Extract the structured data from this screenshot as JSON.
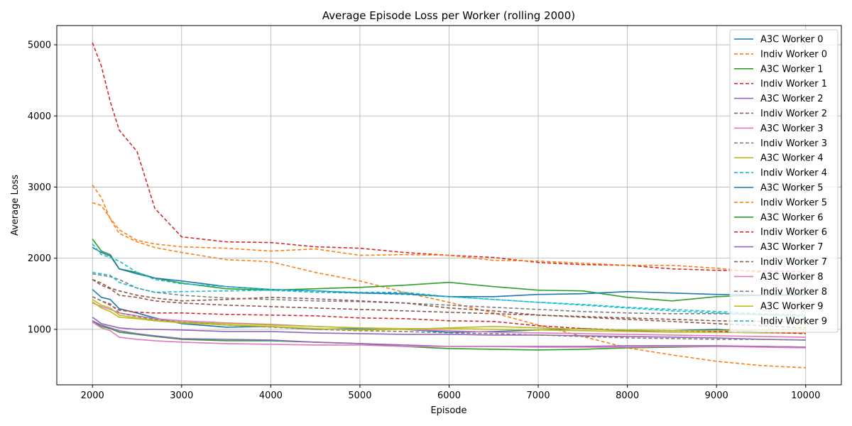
{
  "chart_data": {
    "type": "line",
    "title": "Average Episode Loss per Worker (rolling 2000)",
    "xlabel": "Episode",
    "ylabel": "Average Loss",
    "xlim": [
      1600,
      10400
    ],
    "ylim": [
      220,
      5270
    ],
    "xticks": [
      2000,
      3000,
      4000,
      5000,
      6000,
      7000,
      8000,
      9000,
      10000
    ],
    "yticks": [
      1000,
      2000,
      3000,
      4000,
      5000
    ],
    "grid": true,
    "legend_position": "upper right",
    "x": [
      2000,
      2100,
      2200,
      2300,
      2500,
      2700,
      3000,
      3500,
      4000,
      4500,
      5000,
      5500,
      6000,
      6500,
      7000,
      7500,
      8000,
      8500,
      9000,
      9500,
      10000
    ],
    "series": [
      {
        "name": "A3C Worker 0",
        "color": "#1f77b4",
        "dash": false,
        "values": [
          1560,
          1450,
          1420,
          1290,
          1230,
          1160,
          1080,
          1030,
          1040,
          1000,
          1010,
          1000,
          960,
          970,
          990,
          1010,
          980,
          980,
          1000,
          960,
          950
        ]
      },
      {
        "name": "Indiv Worker 0",
        "color": "#ff7f0e",
        "dash": true,
        "values": [
          3030,
          2850,
          2550,
          2350,
          2230,
          2150,
          2080,
          1980,
          1950,
          1800,
          1680,
          1520,
          1380,
          1230,
          1060,
          900,
          740,
          640,
          550,
          490,
          460
        ]
      },
      {
        "name": "A3C Worker 1",
        "color": "#2ca02c",
        "dash": false,
        "values": [
          2270,
          2100,
          2050,
          1850,
          1800,
          1720,
          1650,
          1570,
          1550,
          1570,
          1590,
          1620,
          1660,
          1600,
          1550,
          1540,
          1450,
          1400,
          1460,
          1480,
          1490
        ]
      },
      {
        "name": "Indiv Worker 1",
        "color": "#d62728",
        "dash": true,
        "values": [
          5030,
          4700,
          4200,
          3800,
          3500,
          2700,
          2300,
          2230,
          2220,
          2160,
          2140,
          2080,
          2040,
          2010,
          1940,
          1910,
          1900,
          1850,
          1830,
          1820,
          1810
        ]
      },
      {
        "name": "A3C Worker 2",
        "color": "#9467bd",
        "dash": false,
        "values": [
          1170,
          1080,
          1050,
          1020,
          1000,
          1000,
          990,
          970,
          970,
          950,
          940,
          930,
          930,
          920,
          920,
          910,
          900,
          890,
          880,
          860,
          850
        ]
      },
      {
        "name": "Indiv Worker 2",
        "color": "#8c564b",
        "dash": true,
        "values": [
          1700,
          1620,
          1570,
          1480,
          1450,
          1400,
          1370,
          1340,
          1320,
          1300,
          1280,
          1260,
          1240,
          1220,
          1200,
          1180,
          1160,
          1140,
          1120,
          1110,
          1100
        ]
      },
      {
        "name": "A3C Worker 3",
        "color": "#e377c2",
        "dash": false,
        "values": [
          1370,
          1320,
          1280,
          1230,
          1190,
          1150,
          1120,
          1090,
          1070,
          1040,
          1020,
          1000,
          980,
          960,
          950,
          940,
          930,
          920,
          910,
          900,
          890
        ]
      },
      {
        "name": "Indiv Worker 3",
        "color": "#7f7f7f",
        "dash": true,
        "values": [
          1780,
          1760,
          1740,
          1700,
          1580,
          1520,
          1480,
          1440,
          1420,
          1400,
          1390,
          1370,
          1340,
          1310,
          1280,
          1250,
          1230,
          1220,
          1220,
          1210,
          1200
        ]
      },
      {
        "name": "A3C Worker 4",
        "color": "#bcbd22",
        "dash": false,
        "values": [
          1420,
          1340,
          1300,
          1200,
          1160,
          1130,
          1100,
          1080,
          1060,
          1040,
          1020,
          1010,
          1010,
          1000,
          990,
          980,
          970,
          960,
          960,
          950,
          950
        ]
      },
      {
        "name": "Indiv Worker 4",
        "color": "#17becf",
        "dash": true,
        "values": [
          1800,
          1780,
          1760,
          1660,
          1580,
          1520,
          1530,
          1540,
          1550,
          1520,
          1510,
          1490,
          1460,
          1420,
          1380,
          1350,
          1310,
          1280,
          1250,
          1220,
          1200
        ]
      },
      {
        "name": "A3C Worker 5",
        "color": "#1f77b4",
        "dash": false,
        "values": [
          2150,
          2080,
          2030,
          1850,
          1780,
          1720,
          1680,
          1600,
          1560,
          1540,
          1510,
          1500,
          1460,
          1460,
          1490,
          1500,
          1530,
          1510,
          1490,
          1480,
          1480
        ]
      },
      {
        "name": "Indiv Worker 5",
        "color": "#ff7f0e",
        "dash": true,
        "values": [
          2780,
          2740,
          2560,
          2400,
          2250,
          2200,
          2160,
          2140,
          2100,
          2130,
          2040,
          2050,
          2040,
          1970,
          1960,
          1930,
          1900,
          1900,
          1860,
          1800,
          1700
        ]
      },
      {
        "name": "A3C Worker 6",
        "color": "#2ca02c",
        "dash": false,
        "values": [
          1120,
          1040,
          1010,
          960,
          930,
          900,
          860,
          840,
          840,
          820,
          800,
          760,
          730,
          720,
          710,
          720,
          740,
          750,
          760,
          760,
          750
        ]
      },
      {
        "name": "Indiv Worker 6",
        "color": "#d62728",
        "dash": true,
        "values": [
          1460,
          1400,
          1340,
          1270,
          1240,
          1230,
          1230,
          1210,
          1200,
          1190,
          1160,
          1150,
          1120,
          1110,
          1050,
          1010,
          990,
          980,
          970,
          960,
          940
        ]
      },
      {
        "name": "A3C Worker 7",
        "color": "#9467bd",
        "dash": false,
        "values": [
          1120,
          1060,
          1020,
          980,
          940,
          910,
          870,
          860,
          850,
          820,
          800,
          780,
          760,
          760,
          760,
          760,
          770,
          770,
          770,
          760,
          750
        ]
      },
      {
        "name": "Indiv Worker 7",
        "color": "#8c564b",
        "dash": true,
        "values": [
          1700,
          1650,
          1580,
          1540,
          1480,
          1440,
          1400,
          1420,
          1450,
          1430,
          1400,
          1370,
          1300,
          1260,
          1200,
          1170,
          1140,
          1110,
          1080,
          1050,
          1020
        ]
      },
      {
        "name": "A3C Worker 8",
        "color": "#e377c2",
        "dash": false,
        "values": [
          1100,
          1020,
          980,
          890,
          860,
          840,
          820,
          800,
          790,
          780,
          780,
          760,
          760,
          760,
          750,
          750,
          750,
          760,
          760,
          750,
          740
        ]
      },
      {
        "name": "Indiv Worker 8",
        "color": "#7f7f7f",
        "dash": true,
        "values": [
          1460,
          1400,
          1360,
          1230,
          1180,
          1140,
          1100,
          1060,
          1030,
          1000,
          980,
          970,
          950,
          940,
          920,
          900,
          880,
          870,
          860,
          860,
          850
        ]
      },
      {
        "name": "A3C Worker 9",
        "color": "#bcbd22",
        "dash": false,
        "values": [
          1390,
          1300,
          1250,
          1170,
          1150,
          1120,
          1090,
          1060,
          1040,
          1010,
          990,
          1000,
          1020,
          1040,
          1020,
          1000,
          990,
          980,
          980,
          990,
          1000
        ]
      },
      {
        "name": "Indiv Worker 9",
        "color": "#17becf",
        "dash": true,
        "values": [
          2200,
          2050,
          2010,
          1960,
          1800,
          1700,
          1640,
          1600,
          1560,
          1540,
          1520,
          1520,
          1460,
          1420,
          1380,
          1340,
          1300,
          1260,
          1230,
          1200,
          1180
        ]
      }
    ]
  }
}
